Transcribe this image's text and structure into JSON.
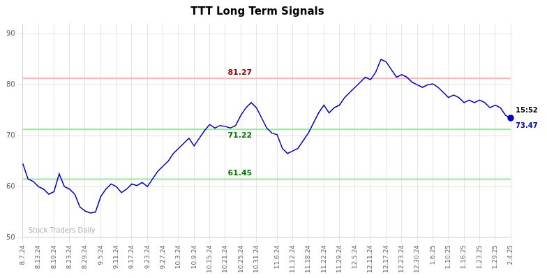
{
  "chart_data": {
    "type": "line",
    "title": "TTT Long Term Signals",
    "categories": [
      "8.7.24",
      null,
      null,
      "8.13.24",
      null,
      null,
      "8.19.24",
      null,
      null,
      "8.23.24",
      null,
      null,
      "8.29.24",
      null,
      null,
      "9.5.24",
      null,
      null,
      "9.11.24",
      null,
      null,
      "9.17.24",
      null,
      null,
      "9.23.24",
      null,
      null,
      "9.27.24",
      null,
      null,
      "10.3.24",
      null,
      null,
      "10.9.24",
      null,
      null,
      "10.15.24",
      null,
      null,
      "10.21.24",
      null,
      null,
      "10.25.24",
      null,
      null,
      "10.31.24",
      null,
      null,
      null,
      "11.6.24",
      null,
      null,
      "11.12.24",
      null,
      null,
      "11.18.24",
      null,
      null,
      "11.22.24",
      null,
      null,
      "11.29.24",
      null,
      null,
      "12.5.24",
      null,
      null,
      "12.11.24",
      null,
      null,
      "12.17.24",
      null,
      null,
      "12.23.24",
      null,
      null,
      "12.30.24",
      null,
      null,
      "1.6.25",
      null,
      null,
      "1.10.25",
      null,
      null,
      "1.16.25",
      null,
      null,
      "1.23.25",
      null,
      null,
      "1.29.25",
      null,
      null,
      "2.4.25"
    ],
    "values": [
      64.5,
      61.5,
      61.0,
      60.0,
      59.5,
      58.5,
      59.0,
      62.5,
      60.0,
      59.5,
      58.5,
      56.0,
      55.2,
      54.8,
      55.0,
      58.0,
      59.5,
      60.5,
      60.0,
      58.8,
      59.5,
      60.5,
      60.2,
      60.8,
      60.0,
      61.5,
      63.0,
      64.0,
      65.0,
      66.5,
      67.5,
      68.5,
      69.5,
      68.0,
      69.5,
      71.0,
      72.2,
      71.5,
      72.0,
      71.8,
      71.5,
      72.0,
      74.0,
      75.5,
      76.5,
      75.5,
      73.5,
      71.5,
      70.5,
      70.2,
      67.5,
      66.5,
      67.0,
      67.5,
      69.0,
      70.5,
      72.5,
      74.5,
      76.0,
      74.5,
      75.5,
      76.0,
      77.5,
      78.5,
      79.5,
      80.5,
      81.5,
      81.0,
      82.5,
      85.0,
      84.5,
      83.0,
      81.5,
      82.0,
      81.5,
      80.5,
      80.0,
      79.5,
      80.0,
      80.2,
      79.5,
      78.5,
      77.5,
      78.0,
      77.5,
      76.5,
      77.0,
      76.5,
      77.0,
      76.5,
      75.5,
      76.0,
      75.5,
      74.0,
      73.47
    ],
    "color": "#0000cc",
    "reference_lines": [
      {
        "value": 81.27,
        "color": "#ffb3b3",
        "label": "81.27",
        "label_color": "#990000"
      },
      {
        "value": 71.22,
        "color": "#90ee90",
        "label": "71.22",
        "label_color": "#007700"
      },
      {
        "value": 61.45,
        "color": "#90ee90",
        "label": "61.45",
        "label_color": "#007700"
      }
    ],
    "last_point": {
      "value": 73.47,
      "time": "15:52",
      "color": "#0000cc"
    },
    "watermark": "Stock Traders Daily",
    "watermark_color": "#b0b0b0",
    "ylim": [
      50,
      92
    ],
    "yticks": [
      50,
      60,
      70,
      80,
      90
    ],
    "grid": true
  }
}
